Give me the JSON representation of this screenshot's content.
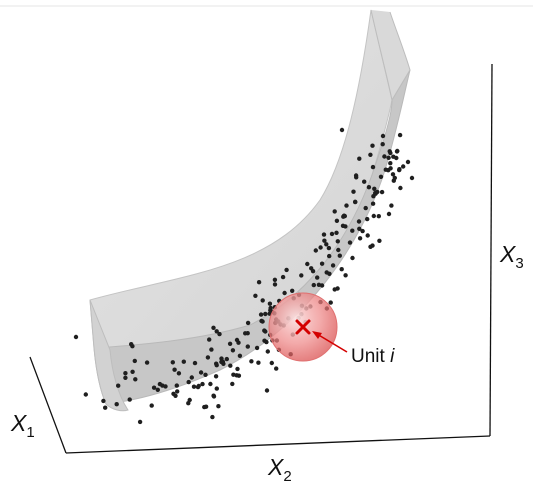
{
  "axes": {
    "x1": {
      "symbol": "X",
      "subscript": "1"
    },
    "x2": {
      "symbol": "X",
      "subscript": "2"
    },
    "x3": {
      "symbol": "X",
      "subscript": "3"
    }
  },
  "callout": {
    "text": "Unit ",
    "variable": "i"
  },
  "colors": {
    "surface_back": "#dcdcdc",
    "surface_front": "#c6c6c6",
    "surface_edge": "#bdbdbd",
    "points": "#1f1f1f",
    "highlight": "#e04848",
    "unit_marker": "#d40000",
    "axis_line": "#111111"
  }
}
